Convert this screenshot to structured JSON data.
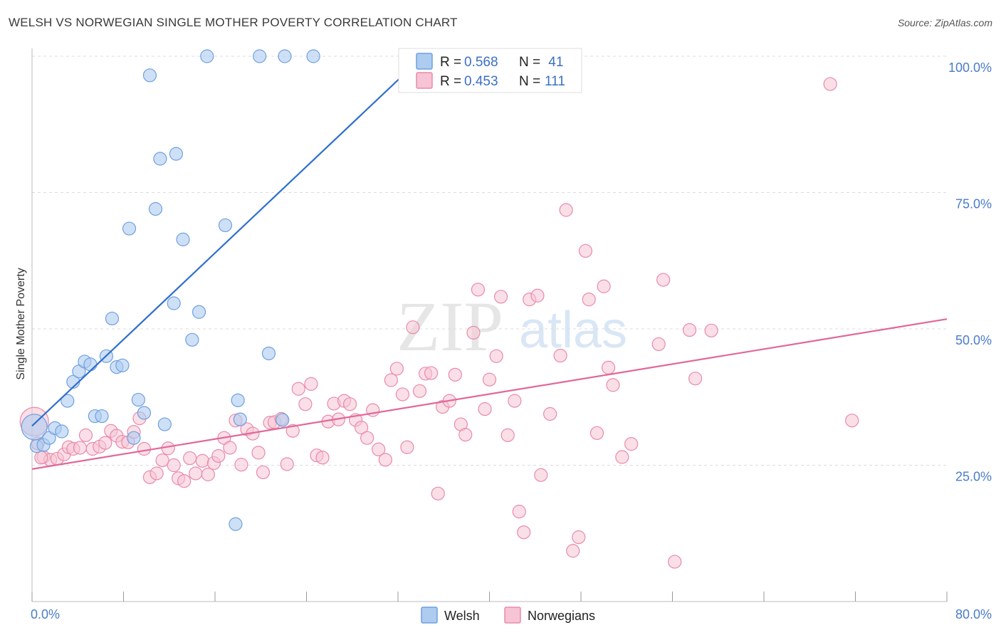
{
  "title": "WELSH VS NORWEGIAN SINGLE MOTHER POVERTY CORRELATION CHART",
  "source": "Source: ZipAtlas.com",
  "watermark": {
    "zip": "ZIP",
    "atlas": "atlas"
  },
  "colors": {
    "welsh": "#6fa0e0",
    "welsh_fill": "#aecbf0",
    "welsh_line": "#2f6fcc",
    "norwegian": "#e98aaa",
    "norwegian_fill": "#f6c4d4",
    "norwegian_line": "#e0689a"
  },
  "legend": {
    "welsh": {
      "r_label": "R = ",
      "r_value": "0.568",
      "n_label": "N = ",
      "n_value": " 41"
    },
    "norwegian": {
      "r_label": "R = ",
      "r_value": "0.453",
      "n_label": "N = ",
      "n_value": "111"
    }
  },
  "bottom_legend": {
    "welsh": "Welsh",
    "norwegian": "Norwegians"
  },
  "chart_data": {
    "type": "scatter",
    "title": "WELSH VS NORWEGIAN SINGLE MOTHER POVERTY CORRELATION CHART",
    "xlabel": "",
    "ylabel": "Single Mother Poverty",
    "xlim": [
      0,
      80
    ],
    "ylim": [
      0,
      100
    ],
    "x_tick_labels": [
      "0.0%",
      "80.0%"
    ],
    "y_tick_labels": [
      "25.0%",
      "50.0%",
      "75.0%",
      "100.0%"
    ],
    "y_ticks": [
      25,
      50,
      75,
      100
    ],
    "grid": true,
    "legend_position": "top-center",
    "series": [
      {
        "name": "Welsh",
        "r": 0.568,
        "n": 41,
        "trend": {
          "x": [
            0,
            34.2
          ],
          "y": [
            32.2,
            100
          ]
        },
        "points": [
          [
            0.2,
            32.0
          ],
          [
            0.4,
            28.5
          ],
          [
            1.0,
            28.7
          ],
          [
            1.5,
            30.0
          ],
          [
            2.0,
            31.8
          ],
          [
            2.6,
            31.2
          ],
          [
            3.1,
            36.8
          ],
          [
            3.6,
            40.3
          ],
          [
            4.1,
            42.2
          ],
          [
            4.6,
            44.0
          ],
          [
            5.1,
            43.5
          ],
          [
            5.5,
            34.0
          ],
          [
            6.1,
            34.0
          ],
          [
            6.5,
            45.0
          ],
          [
            7.0,
            51.9
          ],
          [
            7.4,
            43.0
          ],
          [
            7.9,
            43.3
          ],
          [
            8.5,
            68.4
          ],
          [
            8.9,
            30.0
          ],
          [
            9.3,
            37.0
          ],
          [
            9.8,
            34.6
          ],
          [
            10.3,
            96.5
          ],
          [
            10.8,
            72.0
          ],
          [
            11.2,
            81.2
          ],
          [
            11.6,
            32.5
          ],
          [
            12.4,
            54.7
          ],
          [
            12.6,
            82.1
          ],
          [
            13.2,
            66.4
          ],
          [
            14.0,
            48.0
          ],
          [
            14.6,
            53.1
          ],
          [
            15.3,
            100
          ],
          [
            16.9,
            69.0
          ],
          [
            17.8,
            14.2
          ],
          [
            18.0,
            36.9
          ],
          [
            18.2,
            33.4
          ],
          [
            19.9,
            100
          ],
          [
            20.7,
            45.5
          ],
          [
            21.9,
            33.3
          ],
          [
            22.1,
            100
          ],
          [
            24.6,
            100
          ],
          [
            36.6,
            99.7
          ]
        ]
      },
      {
        "name": "Norwegians",
        "r": 0.453,
        "n": 111,
        "trend": {
          "x": [
            0,
            80
          ],
          "y": [
            24.3,
            51.8
          ]
        },
        "points": [
          [
            0.2,
            33.0
          ],
          [
            0.5,
            29.0
          ],
          [
            1.0,
            26.5
          ],
          [
            1.6,
            26.0
          ],
          [
            2.2,
            26.2
          ],
          [
            2.8,
            27.0
          ],
          [
            3.2,
            28.3
          ],
          [
            3.6,
            28.0
          ],
          [
            4.2,
            28.2
          ],
          [
            4.7,
            30.5
          ],
          [
            5.3,
            28.0
          ],
          [
            5.9,
            28.4
          ],
          [
            6.4,
            29.1
          ],
          [
            6.9,
            31.3
          ],
          [
            7.4,
            30.4
          ],
          [
            7.9,
            29.3
          ],
          [
            8.4,
            29.2
          ],
          [
            8.9,
            31.1
          ],
          [
            9.4,
            33.6
          ],
          [
            9.8,
            28.0
          ],
          [
            10.3,
            22.8
          ],
          [
            10.9,
            23.5
          ],
          [
            11.4,
            25.9
          ],
          [
            11.9,
            28.1
          ],
          [
            12.4,
            25.0
          ],
          [
            12.8,
            22.6
          ],
          [
            13.3,
            22.1
          ],
          [
            13.8,
            26.3
          ],
          [
            14.3,
            23.5
          ],
          [
            14.9,
            25.8
          ],
          [
            15.4,
            23.3
          ],
          [
            15.9,
            25.4
          ],
          [
            16.3,
            26.7
          ],
          [
            16.8,
            30.0
          ],
          [
            17.3,
            28.2
          ],
          [
            17.8,
            33.2
          ],
          [
            18.3,
            25.1
          ],
          [
            18.8,
            31.6
          ],
          [
            19.3,
            30.8
          ],
          [
            19.8,
            27.3
          ],
          [
            20.2,
            23.7
          ],
          [
            20.8,
            32.8
          ],
          [
            21.2,
            32.9
          ],
          [
            21.8,
            33.5
          ],
          [
            22.3,
            25.2
          ],
          [
            22.8,
            31.3
          ],
          [
            23.3,
            39.0
          ],
          [
            23.9,
            36.2
          ],
          [
            24.4,
            39.9
          ],
          [
            24.9,
            26.8
          ],
          [
            25.4,
            26.4
          ],
          [
            25.9,
            33.0
          ],
          [
            26.4,
            36.3
          ],
          [
            26.8,
            33.4
          ],
          [
            27.3,
            36.8
          ],
          [
            27.8,
            36.2
          ],
          [
            28.3,
            33.3
          ],
          [
            28.8,
            31.9
          ],
          [
            29.3,
            30.0
          ],
          [
            29.8,
            35.1
          ],
          [
            30.3,
            27.9
          ],
          [
            30.9,
            26.0
          ],
          [
            31.4,
            40.6
          ],
          [
            31.9,
            42.7
          ],
          [
            32.4,
            38.0
          ],
          [
            32.8,
            28.3
          ],
          [
            33.3,
            50.3
          ],
          [
            33.9,
            38.6
          ],
          [
            34.4,
            41.8
          ],
          [
            34.9,
            41.9
          ],
          [
            35.5,
            19.8
          ],
          [
            35.9,
            35.7
          ],
          [
            36.5,
            36.8
          ],
          [
            37.0,
            41.6
          ],
          [
            37.5,
            32.5
          ],
          [
            37.9,
            30.6
          ],
          [
            38.6,
            49.3
          ],
          [
            39.0,
            57.2
          ],
          [
            39.6,
            35.3
          ],
          [
            40.0,
            40.7
          ],
          [
            40.6,
            45.0
          ],
          [
            41.0,
            55.9
          ],
          [
            41.6,
            30.5
          ],
          [
            42.2,
            36.8
          ],
          [
            42.6,
            16.5
          ],
          [
            43.0,
            12.7
          ],
          [
            43.5,
            55.4
          ],
          [
            44.2,
            56.1
          ],
          [
            44.5,
            23.2
          ],
          [
            45.3,
            34.4
          ],
          [
            46.2,
            45.1
          ],
          [
            46.7,
            71.8
          ],
          [
            47.3,
            9.3
          ],
          [
            47.8,
            11.8
          ],
          [
            48.4,
            64.3
          ],
          [
            48.7,
            55.4
          ],
          [
            49.4,
            30.9
          ],
          [
            50.0,
            57.8
          ],
          [
            50.4,
            42.9
          ],
          [
            50.8,
            39.7
          ],
          [
            51.6,
            26.5
          ],
          [
            52.4,
            28.9
          ],
          [
            54.8,
            47.2
          ],
          [
            55.2,
            59.0
          ],
          [
            56.2,
            7.3
          ],
          [
            57.5,
            49.8
          ],
          [
            58.0,
            40.9
          ],
          [
            59.4,
            49.7
          ],
          [
            69.8,
            94.9
          ],
          [
            71.7,
            33.2
          ],
          [
            0.8,
            26.4
          ]
        ]
      }
    ]
  }
}
